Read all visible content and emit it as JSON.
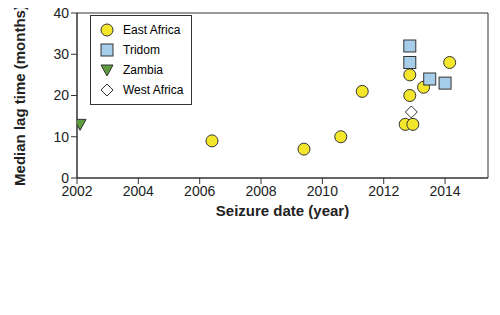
{
  "chart_data": {
    "type": "scatter",
    "x_label": "Seizure date (year)",
    "y_label": "Median lag time (months)",
    "xlim": [
      2002,
      2015.4
    ],
    "xticks": [
      2002,
      2004,
      2006,
      2008,
      2010,
      2012,
      2014
    ],
    "ylim": [
      0,
      40
    ],
    "yticks": [
      0,
      10,
      20,
      30,
      40
    ],
    "grid": false,
    "legend": "upper left",
    "series": [
      {
        "name": "East Africa",
        "color": "#f4e62a",
        "marker": "circle",
        "x": [
          2006.4,
          2009.4,
          2010.6,
          2011.3,
          2012.7,
          2012.85,
          2012.85,
          2012.95,
          2013.3,
          2014.15
        ],
        "values": [
          9,
          7,
          10,
          21,
          13,
          20,
          25,
          13,
          22,
          28
        ]
      },
      {
        "name": "Tridom",
        "color": "#a6cdea",
        "marker": "square",
        "x": [
          2012.85,
          2012.85,
          2013.5,
          2014
        ],
        "values": [
          32,
          28,
          24,
          23
        ]
      },
      {
        "name": "Zambia",
        "color": "#5c9b3e",
        "marker": "triangle_down",
        "x": [
          2002.1
        ],
        "values": [
          13
        ]
      },
      {
        "name": "West Africa",
        "color": "#ffffff",
        "marker": "diamond",
        "x": [
          2012.9
        ],
        "values": [
          16
        ]
      }
    ]
  }
}
